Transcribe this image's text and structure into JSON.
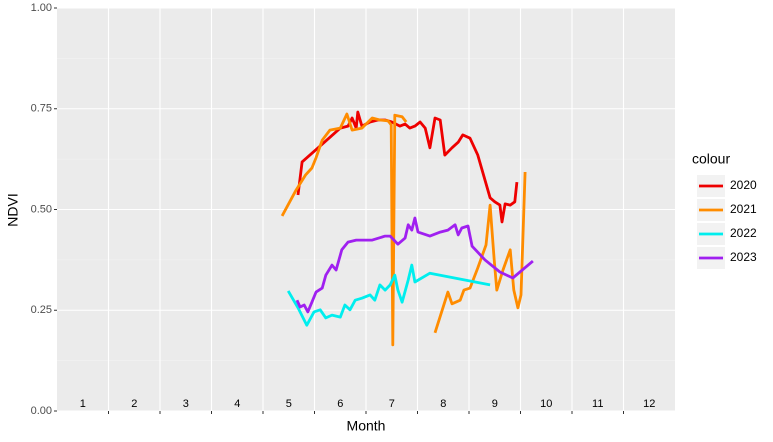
{
  "chart_data": {
    "type": "line",
    "x_label": "Month",
    "y_label": "NDVI",
    "legend_title": "colour",
    "xlim": [
      0,
      12
    ],
    "ylim": [
      0,
      1
    ],
    "xticks": [
      {
        "value": 0.5,
        "label": "1"
      },
      {
        "value": 1.5,
        "label": "2"
      },
      {
        "value": 2.5,
        "label": "3"
      },
      {
        "value": 3.5,
        "label": "4"
      },
      {
        "value": 4.5,
        "label": "5"
      },
      {
        "value": 5.5,
        "label": "6"
      },
      {
        "value": 6.5,
        "label": "7"
      },
      {
        "value": 7.5,
        "label": "8"
      },
      {
        "value": 8.5,
        "label": "9"
      },
      {
        "value": 9.5,
        "label": "10"
      },
      {
        "value": 10.5,
        "label": "11"
      },
      {
        "value": 11.5,
        "label": "12"
      }
    ],
    "x_gridlines": [
      1,
      2,
      3,
      4,
      5,
      6,
      7,
      8,
      9,
      10,
      11
    ],
    "yticks": [
      {
        "value": 0,
        "label": "0.00"
      },
      {
        "value": 0.25,
        "label": "0.25"
      },
      {
        "value": 0.5,
        "label": "0.50"
      },
      {
        "value": 0.75,
        "label": "0.75"
      },
      {
        "value": 1,
        "label": "1.00"
      }
    ],
    "grid": true,
    "legend": "right",
    "series": [
      {
        "name": "2020",
        "color": "#ee0000",
        "x": [
          4.68,
          4.76,
          5.07,
          5.5,
          5.65,
          5.73,
          5.81,
          5.84,
          5.92,
          6.08,
          6.23,
          6.37,
          6.5,
          6.66,
          6.76,
          6.85,
          6.95,
          7.05,
          7.15,
          7.24,
          7.34,
          7.44,
          7.53,
          7.67,
          7.79,
          7.88,
          8.02,
          8.17,
          8.41,
          8.5,
          8.6,
          8.64,
          8.7,
          8.8,
          8.89,
          8.93
        ],
        "values": [
          0.536,
          0.618,
          0.653,
          0.702,
          0.707,
          0.727,
          0.702,
          0.742,
          0.707,
          0.717,
          0.722,
          0.722,
          0.717,
          0.707,
          0.712,
          0.702,
          0.707,
          0.717,
          0.702,
          0.653,
          0.727,
          0.722,
          0.635,
          0.653,
          0.667,
          0.685,
          0.677,
          0.635,
          0.529,
          0.519,
          0.511,
          0.469,
          0.514,
          0.511,
          0.519,
          0.568
        ]
      },
      {
        "name": "2021",
        "color": "#ff8c00",
        "x": [
          4.37,
          4.64,
          4.83,
          4.95,
          5.03,
          5.15,
          5.3,
          5.5,
          5.63,
          5.73,
          5.92,
          6.12,
          6.27,
          6.43,
          6.49,
          6.52,
          6.56,
          6.7,
          6.78,
          7.0,
          7.34,
          7.59,
          7.67,
          7.83,
          7.9,
          8.02,
          8.17,
          8.33,
          8.41,
          8.49,
          8.54,
          8.66,
          8.8,
          8.87,
          8.95,
          9.01,
          9.09
        ],
        "values": [
          0.484,
          0.548,
          0.586,
          0.603,
          0.628,
          0.672,
          0.697,
          0.702,
          0.737,
          0.697,
          0.702,
          0.727,
          0.722,
          0.72,
          0.71,
          0.164,
          0.734,
          0.73,
          0.717,
          null,
          0.194,
          0.295,
          0.266,
          0.275,
          0.3,
          0.305,
          0.355,
          0.412,
          0.511,
          0.375,
          0.3,
          0.35,
          0.4,
          0.3,
          0.256,
          0.288,
          0.593
        ]
      },
      {
        "name": "2022",
        "color": "#00eeee",
        "x": [
          4.49,
          4.68,
          4.85,
          4.99,
          5.11,
          5.22,
          5.34,
          5.5,
          5.59,
          5.69,
          5.79,
          5.92,
          6.08,
          6.17,
          6.27,
          6.37,
          6.47,
          6.56,
          6.62,
          6.7,
          6.82,
          6.89,
          6.95,
          7.24,
          8.41
        ],
        "values": [
          0.298,
          0.256,
          0.213,
          0.246,
          0.251,
          0.231,
          0.238,
          0.233,
          0.263,
          0.251,
          0.275,
          0.28,
          0.288,
          0.275,
          0.313,
          0.3,
          0.313,
          0.337,
          0.3,
          0.27,
          0.325,
          0.362,
          0.32,
          0.342,
          0.313
        ]
      },
      {
        "name": "2023",
        "color": "#a020f0",
        "x": [
          4.66,
          4.72,
          4.8,
          4.87,
          4.95,
          5.03,
          5.15,
          5.22,
          5.34,
          5.42,
          5.53,
          5.65,
          5.81,
          6.12,
          6.37,
          6.47,
          6.62,
          6.76,
          6.82,
          6.89,
          6.95,
          7.01,
          7.24,
          7.44,
          7.59,
          7.73,
          7.79,
          7.86,
          7.98,
          8.06,
          8.31,
          8.6,
          8.85,
          9.24
        ],
        "values": [
          0.275,
          0.258,
          0.263,
          0.246,
          0.27,
          0.295,
          0.305,
          0.337,
          0.362,
          0.35,
          0.4,
          0.419,
          0.424,
          0.424,
          0.434,
          0.434,
          0.414,
          0.429,
          0.462,
          0.449,
          0.479,
          0.444,
          0.434,
          0.444,
          0.449,
          0.462,
          0.437,
          0.454,
          0.459,
          0.409,
          0.375,
          0.345,
          0.33,
          0.372
        ]
      }
    ]
  }
}
